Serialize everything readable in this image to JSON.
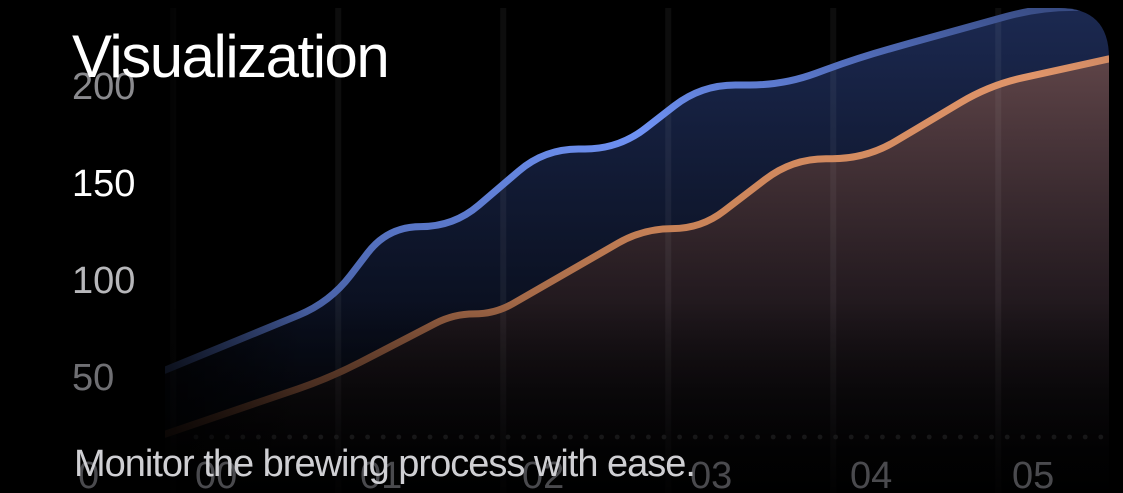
{
  "header": {
    "title": "Visualization",
    "subtitle": "Monitor the brewing process with ease."
  },
  "chart_data": {
    "type": "area",
    "title": "Visualization",
    "subtitle": "Monitor the brewing process with ease.",
    "xlabel": "",
    "ylabel": "",
    "x_ticks": [
      "0",
      "00",
      "01",
      "02",
      "03",
      "04",
      "05"
    ],
    "y_ticks": [
      50,
      100,
      150,
      200
    ],
    "ylim": [
      20,
      220
    ],
    "xlim": [
      0,
      6.5
    ],
    "grid": "vertical",
    "series": [
      {
        "color": "#6a8cf0",
        "x": [
          0,
          1.0,
          1.35,
          1.75,
          2.3,
          2.75,
          3.25,
          3.75,
          4.2,
          4.7,
          5.3,
          6.0,
          6.5
        ],
        "values": [
          53,
          88,
          127,
          127,
          167,
          167,
          200,
          200,
          214,
          226,
          240,
          240,
          240
        ]
      },
      {
        "color": "#d98d62",
        "x": [
          0,
          1.0,
          1.75,
          2.0,
          2.9,
          3.25,
          3.8,
          4.25,
          5.0,
          6.5
        ],
        "values": [
          20,
          49,
          82,
          82,
          126,
          126,
          162,
          162,
          200,
          228
        ]
      }
    ]
  }
}
